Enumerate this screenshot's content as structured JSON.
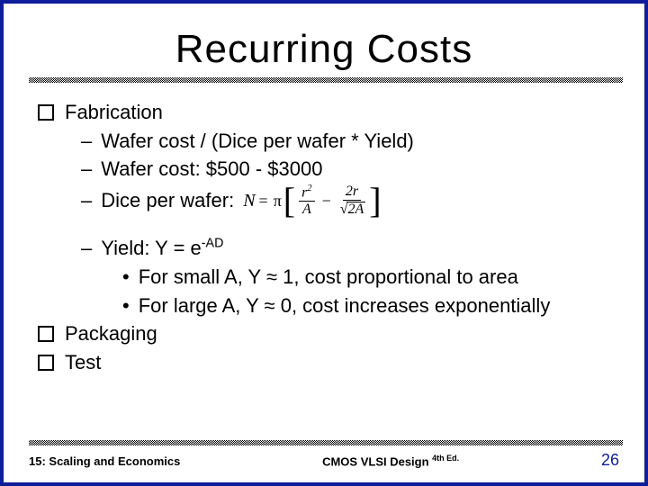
{
  "title": "Recurring Costs",
  "bullets": {
    "fabrication": "Fabrication",
    "wafer_formula": "Wafer cost / (Dice per wafer * Yield)",
    "wafer_cost": "Wafer cost: $500 - $3000",
    "dice_per_wafer": "Dice per wafer:",
    "yield_line": {
      "prefix": "Yield: Y = e",
      "exp": "-AD"
    },
    "small_a": "For small A, Y ≈ 1, cost proportional to area",
    "large_a": "For large A, Y ≈ 0, cost increases exponentially",
    "packaging": "Packaging",
    "test": "Test"
  },
  "formula": {
    "N": "N",
    "eq": "=",
    "pi": "π",
    "r2": "r",
    "r2_exp": "2",
    "A": "A",
    "two_r": "2r",
    "two_a": "2A"
  },
  "footer": {
    "left": "15: Scaling and Economics",
    "center_main": "CMOS VLSI Design ",
    "center_ed": "4th Ed.",
    "page": "26"
  },
  "colors": {
    "border": "#0f1d9a",
    "text": "#000000",
    "page_number": "#0f1d9a",
    "background": "#ffffff"
  }
}
